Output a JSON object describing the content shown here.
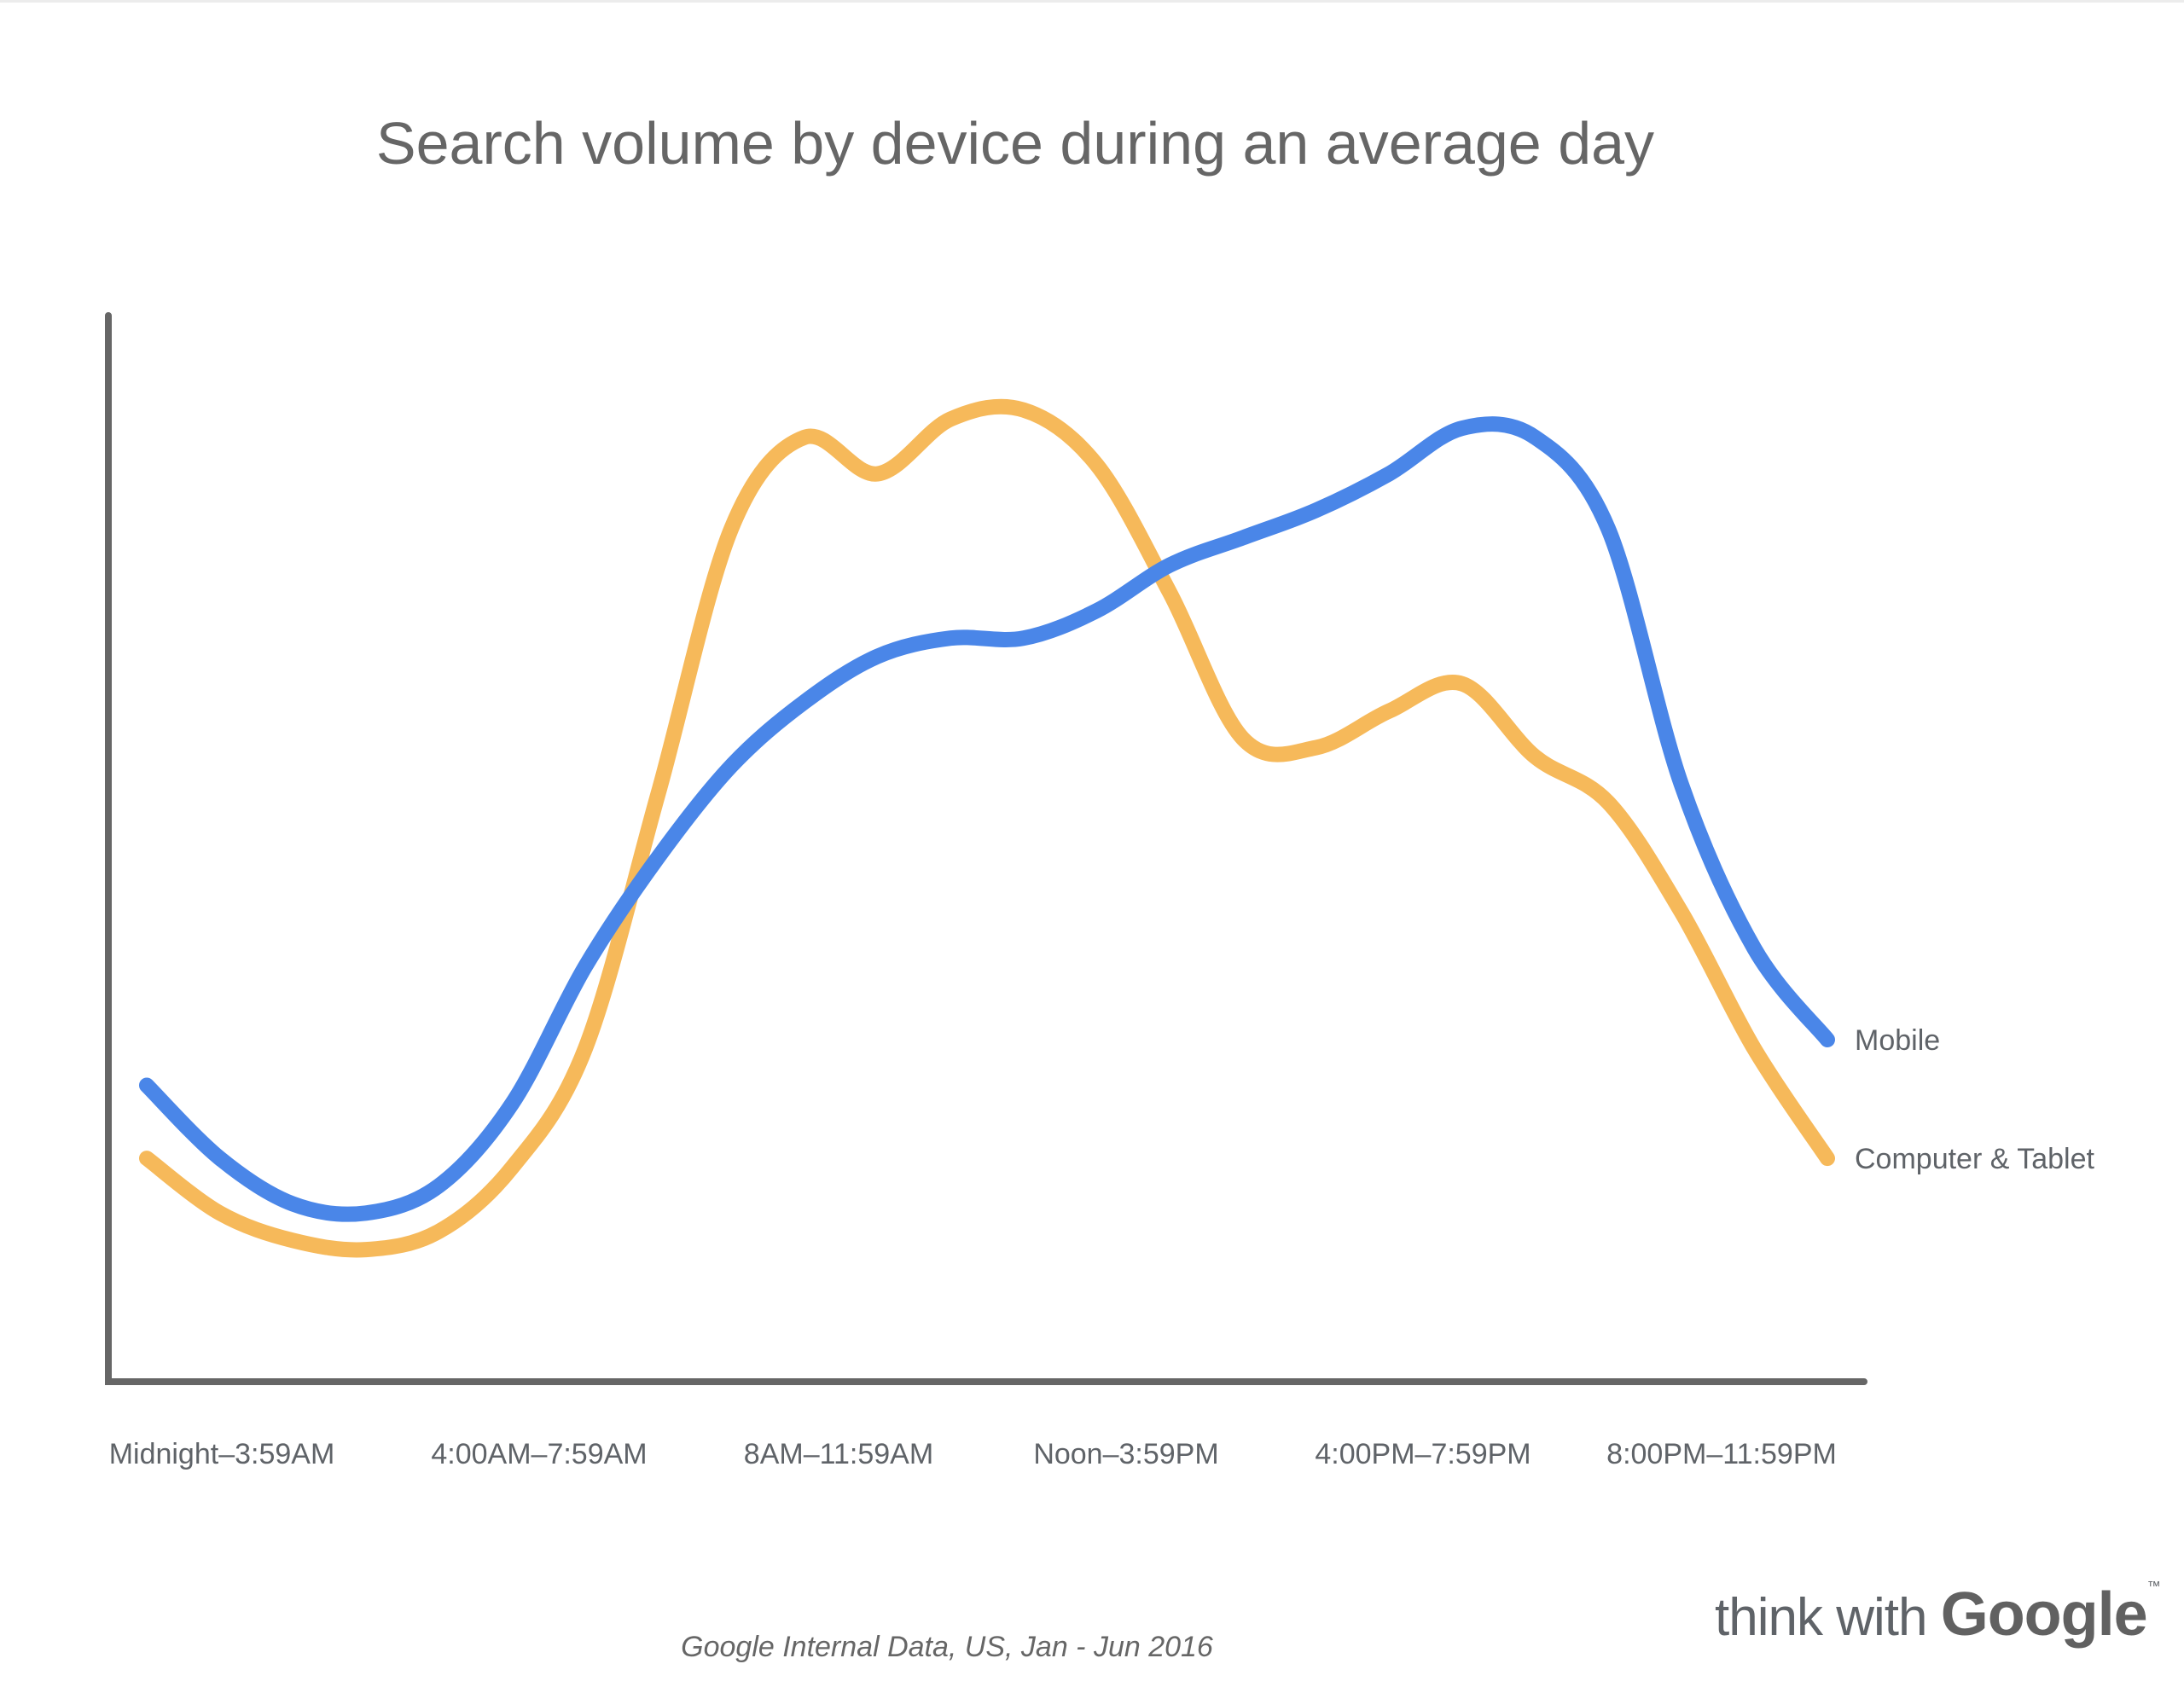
{
  "title": "Search volume by device during an average day",
  "source": "Google Internal Data, US, Jan - Jun 2016",
  "logo": {
    "prefix": "think with",
    "brand": "Google",
    "tm": "™"
  },
  "chart_data": {
    "type": "line",
    "title": "Search volume by device during an average day",
    "xlabel": "",
    "ylabel": "",
    "grid": false,
    "ylim": [
      0,
      100
    ],
    "categories": [
      "Midnight–3:59AM",
      "4:00AM–7:59AM",
      "8AM–11:59AM",
      "Noon–3:59PM",
      "4:00PM–7:59PM",
      "8:00PM–11:59PM"
    ],
    "x": [
      0,
      0.25,
      0.5,
      0.75,
      1,
      1.25,
      1.5,
      1.75,
      2,
      2.25,
      2.5,
      2.75,
      3,
      3.25,
      3.5,
      3.75,
      4,
      4.25,
      4.5,
      4.75,
      5,
      5.25,
      5.5,
      5.75
    ],
    "series": [
      {
        "name": "Mobile",
        "color": "#4a86e8",
        "values": [
          25,
          17,
          12,
          11,
          14,
          23,
          38,
          50,
          60,
          67,
          72,
          74,
          74,
          77,
          82,
          85,
          88,
          92,
          97,
          96,
          86,
          58,
          40,
          30
        ]
      },
      {
        "name": "Computer & Tablet",
        "color": "#f6b95a",
        "values": [
          17,
          11,
          8,
          7,
          9,
          16,
          29,
          57,
          86,
          96,
          92,
          98,
          99,
          93,
          79,
          63,
          62,
          66,
          69,
          61,
          56,
          44,
          29,
          17
        ]
      }
    ]
  }
}
